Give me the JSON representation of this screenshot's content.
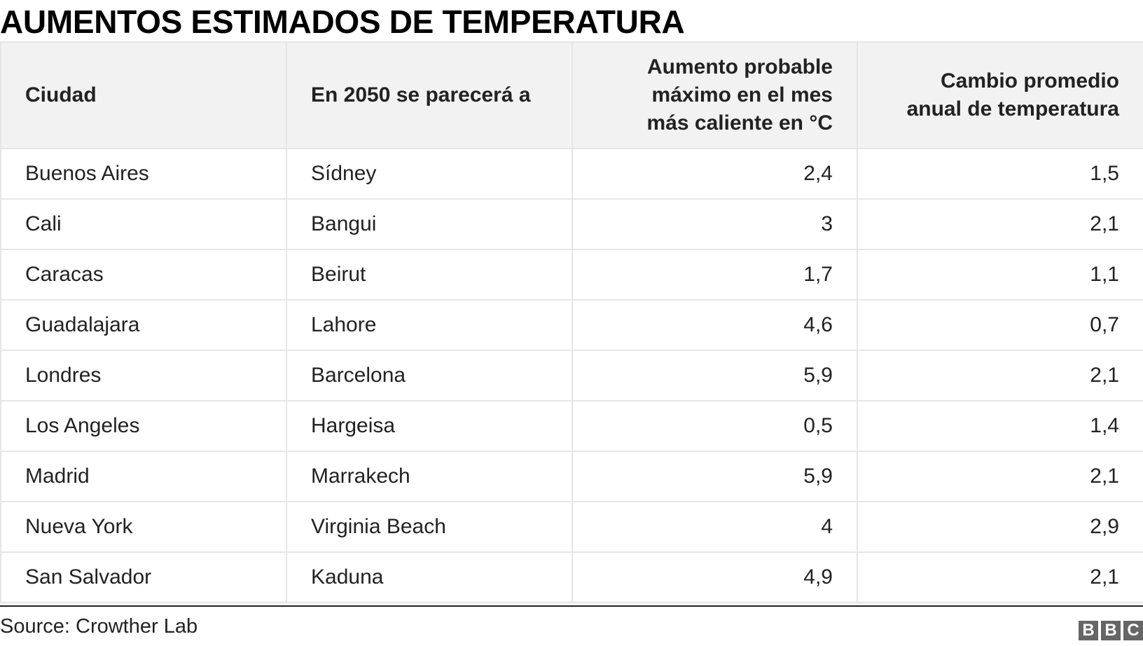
{
  "title": "AUMENTOS ESTIMADOS DE TEMPERATURA",
  "table": {
    "columns": [
      "Ciudad",
      "En 2050 se parecerá a",
      "Aumento probable máximo en el mes más caliente en °C",
      "Cambio promedio anual de temperatura"
    ],
    "rows": [
      [
        "Buenos Aires",
        "Sídney",
        "2,4",
        "1,5"
      ],
      [
        "Cali",
        "Bangui",
        "3",
        "2,1"
      ],
      [
        "Caracas",
        "Beirut",
        "1,7",
        "1,1"
      ],
      [
        "Guadalajara",
        "Lahore",
        "4,6",
        "0,7"
      ],
      [
        "Londres",
        "Barcelona",
        "5,9",
        "2,1"
      ],
      [
        "Los Angeles",
        "Hargeisa",
        "0,5",
        "1,4"
      ],
      [
        "Madrid",
        "Marrakech",
        "5,9",
        "2,1"
      ],
      [
        "Nueva York",
        "Virginia Beach",
        "4",
        "2,9"
      ],
      [
        "San Salvador",
        "Kaduna",
        "4,9",
        "2,1"
      ]
    ]
  },
  "source": "Source: Crowther Lab",
  "logo": [
    "B",
    "B",
    "C"
  ]
}
